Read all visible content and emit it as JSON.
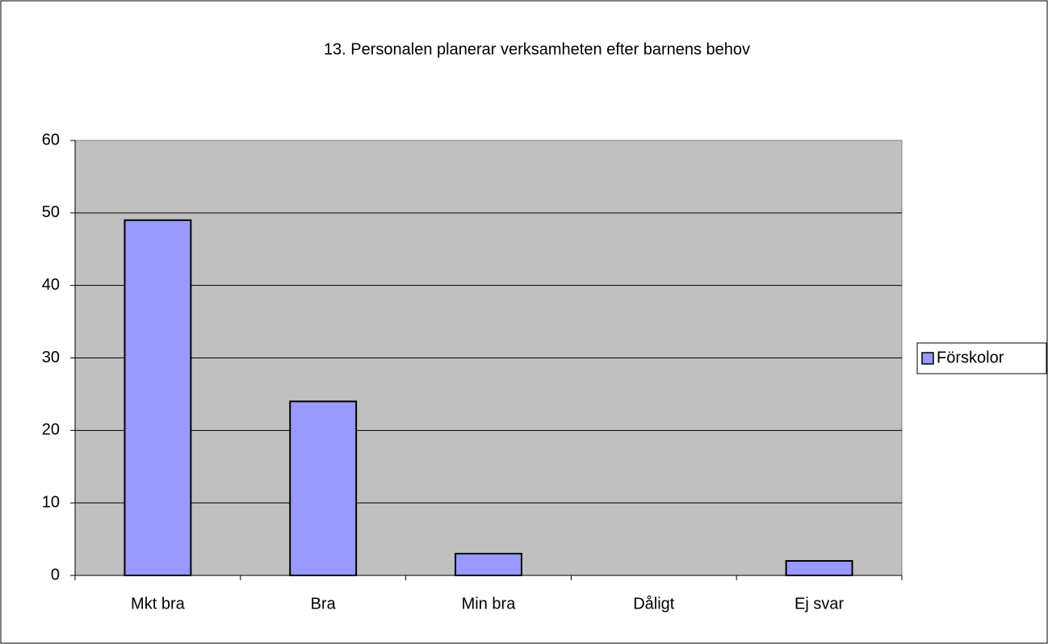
{
  "chart_data": {
    "type": "bar",
    "title": "13. Personalen planerar verksamheten efter barnens behov",
    "categories": [
      "Mkt bra",
      "Bra",
      "Min bra",
      "Dåligt",
      "Ej svar"
    ],
    "series": [
      {
        "name": "Förskolor",
        "color": "#9999ff",
        "values": [
          49,
          24,
          3,
          0,
          2
        ]
      }
    ],
    "ylim": [
      0,
      60
    ],
    "yticks": [
      0,
      10,
      20,
      30,
      40,
      50,
      60
    ],
    "grid": true,
    "legend": "right"
  }
}
